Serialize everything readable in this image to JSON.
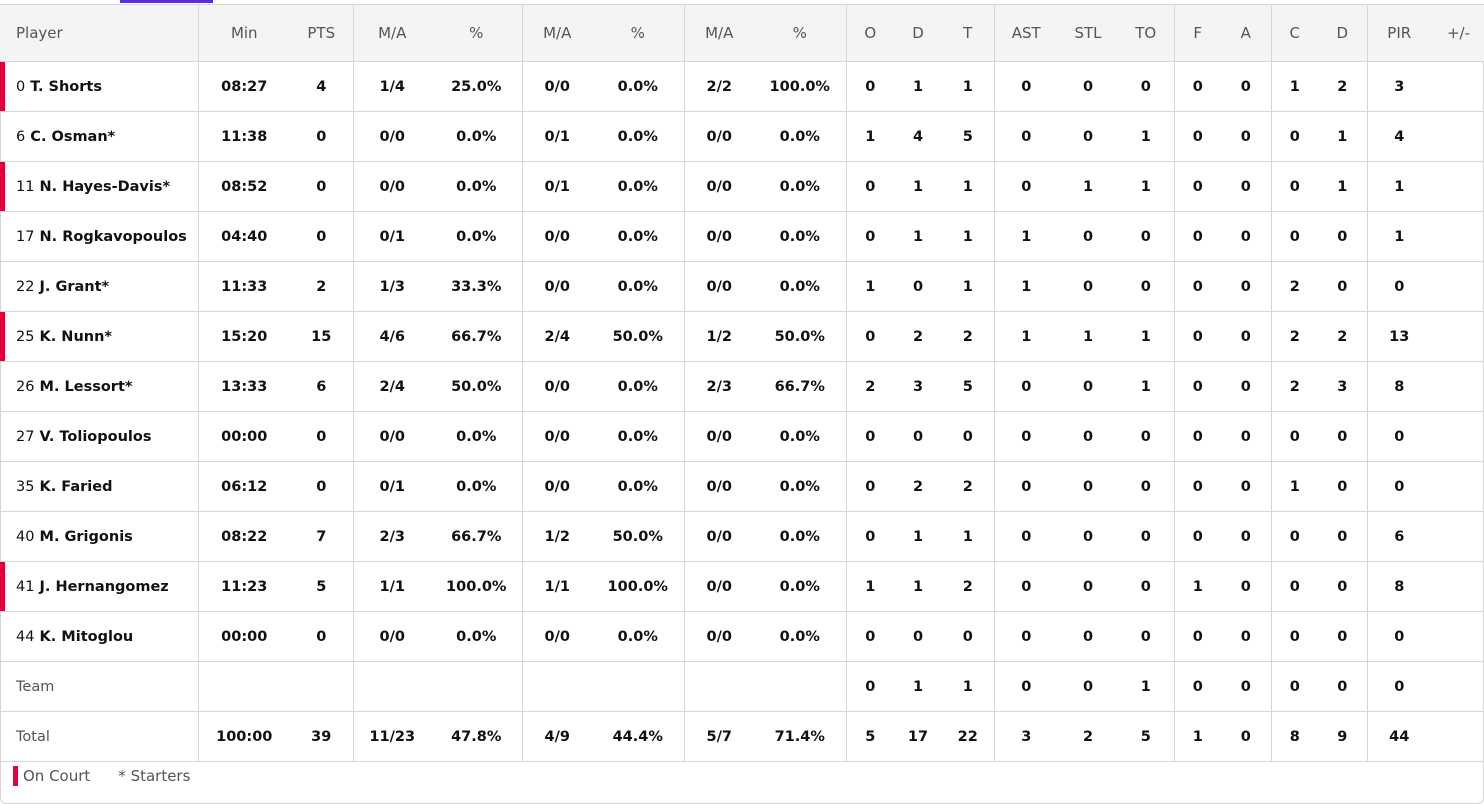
{
  "headers": [
    "Player",
    "Min",
    "PTS",
    "M/A",
    "%",
    "M/A",
    "%",
    "M/A",
    "%",
    "O",
    "D",
    "T",
    "AST",
    "STL",
    "TO",
    "F",
    "A",
    "C",
    "D",
    "PIR",
    "+/-"
  ],
  "players": [
    {
      "num": "0",
      "name": "T. Shorts",
      "on_court": true,
      "stats": [
        "08:27",
        "4",
        "1/4",
        "25.0%",
        "0/0",
        "0.0%",
        "2/2",
        "100.0%",
        "0",
        "1",
        "1",
        "0",
        "0",
        "0",
        "0",
        "0",
        "1",
        "2",
        "3",
        ""
      ]
    },
    {
      "num": "6",
      "name": "C. Osman*",
      "on_court": false,
      "stats": [
        "11:38",
        "0",
        "0/0",
        "0.0%",
        "0/1",
        "0.0%",
        "0/0",
        "0.0%",
        "1",
        "4",
        "5",
        "0",
        "0",
        "1",
        "0",
        "0",
        "0",
        "1",
        "4",
        ""
      ]
    },
    {
      "num": "11",
      "name": "N. Hayes-Davis*",
      "on_court": true,
      "stats": [
        "08:52",
        "0",
        "0/0",
        "0.0%",
        "0/1",
        "0.0%",
        "0/0",
        "0.0%",
        "0",
        "1",
        "1",
        "0",
        "1",
        "1",
        "0",
        "0",
        "0",
        "1",
        "1",
        ""
      ]
    },
    {
      "num": "17",
      "name": "N. Rogkavopoulos",
      "on_court": false,
      "stats": [
        "04:40",
        "0",
        "0/1",
        "0.0%",
        "0/0",
        "0.0%",
        "0/0",
        "0.0%",
        "0",
        "1",
        "1",
        "1",
        "0",
        "0",
        "0",
        "0",
        "0",
        "0",
        "1",
        ""
      ]
    },
    {
      "num": "22",
      "name": "J. Grant*",
      "on_court": false,
      "stats": [
        "11:33",
        "2",
        "1/3",
        "33.3%",
        "0/0",
        "0.0%",
        "0/0",
        "0.0%",
        "1",
        "0",
        "1",
        "1",
        "0",
        "0",
        "0",
        "0",
        "2",
        "0",
        "0",
        ""
      ]
    },
    {
      "num": "25",
      "name": "K. Nunn*",
      "on_court": true,
      "stats": [
        "15:20",
        "15",
        "4/6",
        "66.7%",
        "2/4",
        "50.0%",
        "1/2",
        "50.0%",
        "0",
        "2",
        "2",
        "1",
        "1",
        "1",
        "0",
        "0",
        "2",
        "2",
        "13",
        ""
      ]
    },
    {
      "num": "26",
      "name": "M. Lessort*",
      "on_court": false,
      "stats": [
        "13:33",
        "6",
        "2/4",
        "50.0%",
        "0/0",
        "0.0%",
        "2/3",
        "66.7%",
        "2",
        "3",
        "5",
        "0",
        "0",
        "1",
        "0",
        "0",
        "2",
        "3",
        "8",
        ""
      ]
    },
    {
      "num": "27",
      "name": "V. Toliopoulos",
      "on_court": false,
      "stats": [
        "00:00",
        "0",
        "0/0",
        "0.0%",
        "0/0",
        "0.0%",
        "0/0",
        "0.0%",
        "0",
        "0",
        "0",
        "0",
        "0",
        "0",
        "0",
        "0",
        "0",
        "0",
        "0",
        ""
      ]
    },
    {
      "num": "35",
      "name": "K. Faried",
      "on_court": false,
      "stats": [
        "06:12",
        "0",
        "0/1",
        "0.0%",
        "0/0",
        "0.0%",
        "0/0",
        "0.0%",
        "0",
        "2",
        "2",
        "0",
        "0",
        "0",
        "0",
        "0",
        "1",
        "0",
        "0",
        ""
      ]
    },
    {
      "num": "40",
      "name": "M. Grigonis",
      "on_court": false,
      "stats": [
        "08:22",
        "7",
        "2/3",
        "66.7%",
        "1/2",
        "50.0%",
        "0/0",
        "0.0%",
        "0",
        "1",
        "1",
        "0",
        "0",
        "0",
        "0",
        "0",
        "0",
        "0",
        "6",
        ""
      ]
    },
    {
      "num": "41",
      "name": "J. Hernangomez",
      "on_court": true,
      "stats": [
        "11:23",
        "5",
        "1/1",
        "100.0%",
        "1/1",
        "100.0%",
        "0/0",
        "0.0%",
        "1",
        "1",
        "2",
        "0",
        "0",
        "0",
        "1",
        "0",
        "0",
        "0",
        "8",
        ""
      ]
    },
    {
      "num": "44",
      "name": "K. Mitoglou",
      "on_court": false,
      "stats": [
        "00:00",
        "0",
        "0/0",
        "0.0%",
        "0/0",
        "0.0%",
        "0/0",
        "0.0%",
        "0",
        "0",
        "0",
        "0",
        "0",
        "0",
        "0",
        "0",
        "0",
        "0",
        "0",
        ""
      ]
    }
  ],
  "team": {
    "label": "Team",
    "stats": [
      "",
      "",
      "",
      "",
      "",
      "",
      "",
      "",
      "0",
      "1",
      "1",
      "0",
      "0",
      "1",
      "0",
      "0",
      "0",
      "0",
      "0",
      ""
    ]
  },
  "total": {
    "label": "Total",
    "stats": [
      "100:00",
      "39",
      "11/23",
      "47.8%",
      "4/9",
      "44.4%",
      "5/7",
      "71.4%",
      "5",
      "17",
      "22",
      "3",
      "2",
      "5",
      "1",
      "0",
      "8",
      "9",
      "44",
      ""
    ]
  },
  "legend": {
    "on_court": "On Court",
    "starters": "* Starters"
  },
  "colors": {
    "on_court": "#e4003d",
    "tab_accent": "#5b2be0"
  }
}
